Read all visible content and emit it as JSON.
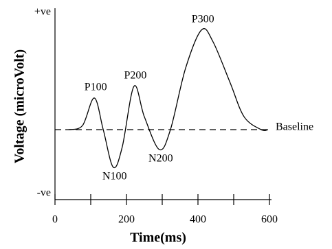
{
  "chart_data": {
    "type": "line",
    "x_label": "Time(ms)",
    "y_label": "Voltage (microVolt)",
    "xlim": [
      0,
      600
    ],
    "xticks": [
      0,
      200,
      400,
      600
    ],
    "xminor": [
      100,
      300,
      500
    ],
    "ylim": [
      -0.6,
      1
    ],
    "yticks": [
      {
        "value": 1,
        "label": "+ve"
      },
      {
        "value": -0.6,
        "label": "-ve"
      }
    ],
    "baseline": {
      "value": 0,
      "label": "Baseline"
    },
    "series": [
      {
        "color": "#000000",
        "x": [
          38,
          77,
          110,
          135,
          163,
          188,
          221,
          250,
          292,
          323,
          365,
          410,
          442,
          490,
          529,
          577,
          596
        ],
        "values": [
          0,
          0.035,
          0.27,
          0,
          -0.32,
          -0.15,
          0.37,
          0.11,
          -0.17,
          0,
          0.52,
          0.85,
          0.75,
          0.4,
          0.11,
          0,
          0
        ]
      }
    ],
    "annotations": [
      {
        "text": "P100",
        "x": 110,
        "y": 0.27
      },
      {
        "text": "N100",
        "x": 163,
        "y": -0.32
      },
      {
        "text": "P200",
        "x": 221,
        "y": 0.37
      },
      {
        "text": "N200",
        "x": 292,
        "y": -0.17
      },
      {
        "text": "P300",
        "x": 410,
        "y": 0.85
      }
    ]
  }
}
